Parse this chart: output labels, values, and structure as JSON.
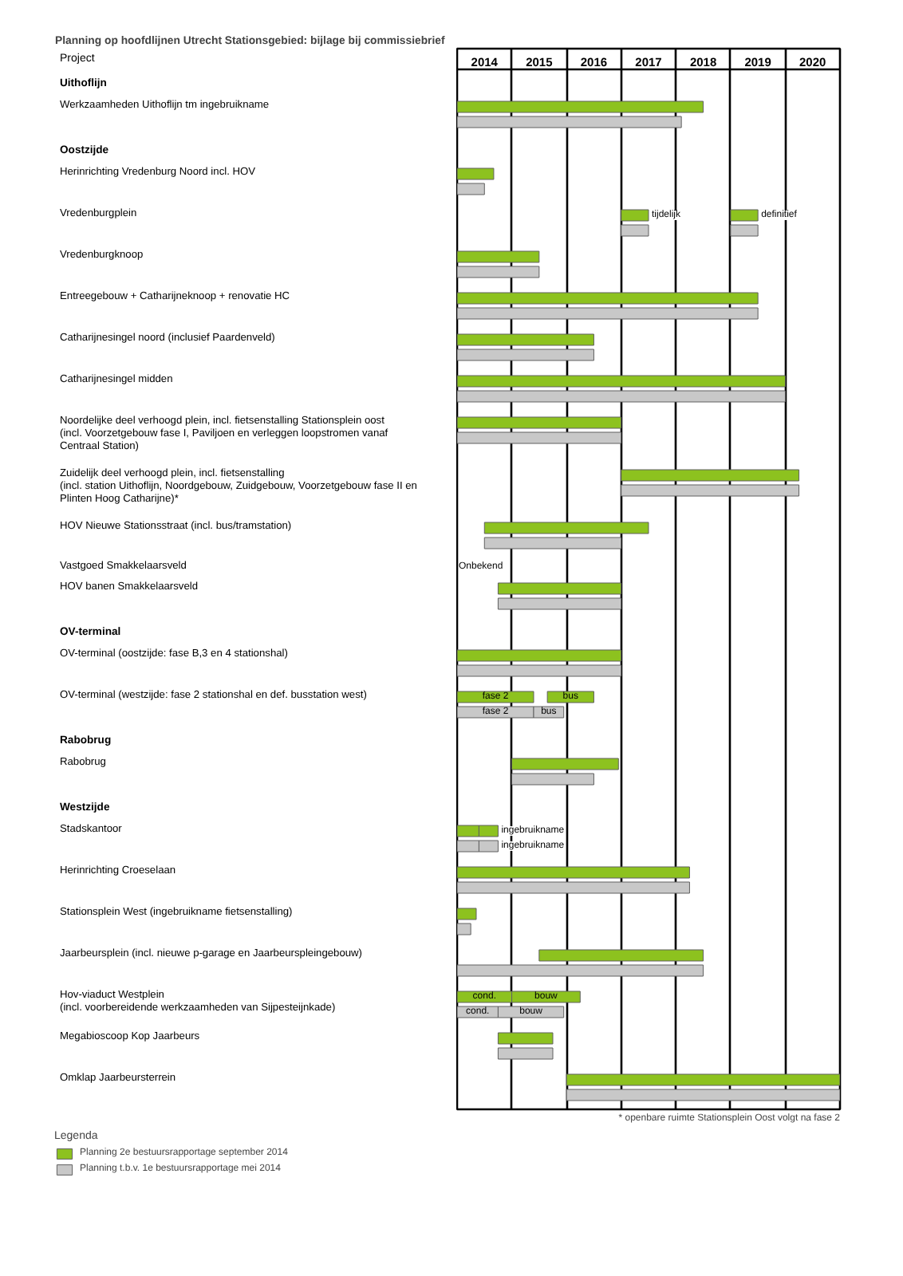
{
  "chart_data": {
    "type": "bar",
    "orientation": "horizontal",
    "title": "Planning op hoofdlijnen Utrecht Stationsgebied: bijlage bij commissiebrief",
    "ylabel": "Project",
    "legend_title": "Legenda",
    "legend": "bottom",
    "grid": "x",
    "categories": [
      "Uithoflijn",
      "Werkzaamheden Uithoflijn tm ingebruikname",
      "Oostzijde",
      "Herinrichting Vredenburg Noord incl. HOV",
      "Vredenburgplein",
      "Vredenburgknoop",
      "Entreegebouw + Catharijneknoop + renovatie HC",
      "Catharijnesingel noord (inclusief Paardenveld)",
      "Catharijnesingel midden",
      "Noordelijke deel verhoogd plein, incl. fietsenstalling Stationsplein oost\n(incl. Voorzetgebouw fase I, Paviljoen en verleggen loopstromen vanaf\nCentraal Station)",
      "Zuidelijk deel verhoogd plein, incl. fietsenstalling\n(incl. station Uithoflijn, Noordgebouw, Zuidgebouw, Voorzetgebouw fase II en\nPlinten Hoog Catharijne)*",
      "HOV Nieuwe Stationsstraat (incl. bus/tramstation)",
      "Vastgoed Smakkelaarsveld",
      "HOV banen Smakkelaarsveld",
      "OV-terminal",
      "OV-terminal (oostzijde: fase B,3 en 4 stationshal)",
      "OV-terminal (westzijde: fase 2 stationshal en def. busstation west)",
      "Rabobrug",
      "Rabobrug",
      "Westzijde",
      "Stadskantoor",
      "Herinrichting Croeselaan",
      "Stationsplein West (ingebruikname fietsenstalling)",
      "Jaarbeursplein (incl. nieuwe p-garage en Jaarbeurspleingebouw)",
      "Hov-viaduct Westplein\n(incl. voorbereidende werkzaamheden van Sijpesteijnkade)",
      "Megabioscoop Kop Jaarbeurs",
      "Omklap Jaarbeursterrein"
    ],
    "series": [
      {
        "name": "Planning 2e bestuursrapportage september 2014",
        "color": "#8dc21f",
        "base": [
          null,
          2014,
          null,
          2014,
          2017,
          2014,
          2014,
          2014,
          2014,
          2014,
          2017,
          2014.5,
          null,
          2014.75,
          null,
          2014,
          2014,
          null,
          2015,
          null,
          2014,
          2014,
          2014,
          2015.5,
          2014,
          2014.75,
          2016
        ],
        "values": [
          null,
          4.5,
          null,
          0.67,
          0.5,
          1.5,
          5.5,
          2.5,
          6,
          3,
          3.25,
          3,
          null,
          2.25,
          null,
          3,
          1.4,
          null,
          1.95,
          null,
          0.4,
          4.25,
          0.35,
          3,
          1,
          1,
          5
        ],
        "value_labels": [
          null,
          null,
          null,
          null,
          "tijdelijk",
          null,
          null,
          null,
          null,
          null,
          null,
          null,
          "Onbekend",
          null,
          null,
          null,
          "fase 2",
          null,
          null,
          null,
          null,
          null,
          null,
          null,
          "cond.",
          null,
          null
        ]
      },
      {
        "name": "Planning t.b.v. 1e bestuursrapportage mei 2014",
        "color": "#c8c8c8",
        "base": [
          null,
          2014,
          null,
          2014,
          2017,
          2014,
          2014,
          2014,
          2014,
          2014,
          2017,
          2014.5,
          null,
          2014.75,
          null,
          2014,
          2014,
          null,
          2015,
          null,
          2014,
          2014,
          2014,
          2014,
          2014,
          2014.75,
          2016
        ],
        "values": [
          null,
          4.1,
          null,
          0.5,
          0.5,
          1.5,
          5.5,
          2.5,
          6,
          3,
          3.25,
          2.5,
          null,
          2.25,
          null,
          3,
          1.4,
          null,
          1.5,
          null,
          0.4,
          4.25,
          0.25,
          4.5,
          0.75,
          1,
          5
        ],
        "value_labels": [
          null,
          null,
          null,
          null,
          null,
          null,
          null,
          null,
          null,
          null,
          null,
          null,
          null,
          null,
          null,
          null,
          "fase 2",
          null,
          null,
          null,
          null,
          null,
          null,
          null,
          "cond.",
          null,
          null
        ]
      },
      {
        "color": "#8dc21f",
        "base": [
          null,
          null,
          null,
          null,
          2019,
          null,
          null,
          null,
          null,
          null,
          null,
          null,
          null,
          null,
          null,
          null,
          2015.65,
          null,
          null,
          null,
          2014.4,
          null,
          null,
          null,
          2015,
          null,
          null
        ],
        "values": [
          null,
          null,
          null,
          null,
          0.5,
          null,
          null,
          null,
          null,
          null,
          null,
          null,
          null,
          null,
          null,
          null,
          0.85,
          null,
          null,
          null,
          0.35,
          null,
          null,
          null,
          1.25,
          null,
          null
        ],
        "value_labels": [
          null,
          null,
          null,
          null,
          "definitief",
          null,
          null,
          null,
          null,
          null,
          null,
          null,
          null,
          null,
          null,
          null,
          "bus",
          null,
          null,
          null,
          "ingebruikname",
          null,
          null,
          null,
          "bouw",
          null,
          null
        ]
      },
      {
        "color": "#c8c8c8",
        "base": [
          null,
          null,
          null,
          null,
          2019,
          null,
          null,
          null,
          null,
          null,
          null,
          null,
          null,
          null,
          null,
          null,
          2015.4,
          null,
          null,
          null,
          2014.4,
          null,
          null,
          null,
          2014.75,
          null,
          null
        ],
        "values": [
          null,
          null,
          null,
          null,
          0.5,
          null,
          null,
          null,
          null,
          null,
          null,
          null,
          null,
          null,
          null,
          null,
          0.55,
          null,
          null,
          null,
          0.35,
          null,
          null,
          null,
          1.2,
          null,
          null
        ],
        "value_labels": [
          null,
          null,
          null,
          null,
          null,
          null,
          null,
          null,
          null,
          null,
          null,
          null,
          null,
          null,
          null,
          null,
          "bus",
          null,
          null,
          null,
          "ingebruikname",
          null,
          null,
          null,
          "bouw",
          null,
          null
        ]
      }
    ],
    "xlim": [
      2014,
      2021
    ],
    "xticks": [
      {
        "value": 2014,
        "label": null
      },
      {
        "value": 2014.5,
        "label": "2014"
      },
      {
        "value": 2015,
        "label": null
      },
      {
        "value": 2015.5,
        "label": "2015"
      },
      {
        "value": 2016,
        "label": null
      },
      {
        "value": 2016.5,
        "label": "2016"
      },
      {
        "value": 2017,
        "label": null
      },
      {
        "value": 2017.5,
        "label": "2017"
      },
      {
        "value": 2018,
        "label": null
      },
      {
        "value": 2018.5,
        "label": "2018"
      },
      {
        "value": 2019,
        "label": null
      },
      {
        "value": 2019.5,
        "label": "2019"
      },
      {
        "value": 2020,
        "label": null
      },
      {
        "value": 2020.5,
        "label": "2020"
      },
      {
        "value": 2021,
        "label": null
      }
    ],
    "annotations": [
      "* openbare ruimte Stationsplein Oost volgt na fase 2"
    ]
  }
}
